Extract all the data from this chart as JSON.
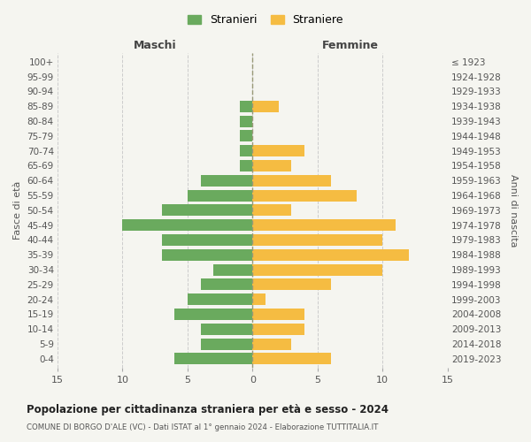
{
  "age_groups": [
    "0-4",
    "5-9",
    "10-14",
    "15-19",
    "20-24",
    "25-29",
    "30-34",
    "35-39",
    "40-44",
    "45-49",
    "50-54",
    "55-59",
    "60-64",
    "65-69",
    "70-74",
    "75-79",
    "80-84",
    "85-89",
    "90-94",
    "95-99",
    "100+"
  ],
  "birth_years": [
    "2019-2023",
    "2014-2018",
    "2009-2013",
    "2004-2008",
    "1999-2003",
    "1994-1998",
    "1989-1993",
    "1984-1988",
    "1979-1983",
    "1974-1978",
    "1969-1973",
    "1964-1968",
    "1959-1963",
    "1954-1958",
    "1949-1953",
    "1944-1948",
    "1939-1943",
    "1934-1938",
    "1929-1933",
    "1924-1928",
    "≤ 1923"
  ],
  "males": [
    6,
    4,
    4,
    6,
    5,
    4,
    3,
    7,
    7,
    10,
    7,
    5,
    4,
    1,
    1,
    1,
    1,
    1,
    0,
    0,
    0
  ],
  "females": [
    6,
    3,
    4,
    4,
    1,
    6,
    10,
    12,
    10,
    11,
    3,
    8,
    6,
    3,
    4,
    0,
    0,
    2,
    0,
    0,
    0
  ],
  "male_color": "#6aaa5e",
  "female_color": "#f5bc42",
  "background_color": "#f5f5f0",
  "grid_color": "#cccccc",
  "center_line_color": "#999977",
  "title": "Popolazione per cittadinanza straniera per età e sesso - 2024",
  "subtitle": "COMUNE DI BORGO D'ALE (VC) - Dati ISTAT al 1° gennaio 2024 - Elaborazione TUTTITALIA.IT",
  "xlabel_left": "Maschi",
  "xlabel_right": "Femmine",
  "ylabel_left": "Fasce di età",
  "ylabel_right": "Anni di nascita",
  "legend_male": "Stranieri",
  "legend_female": "Straniere",
  "xlim": 15
}
